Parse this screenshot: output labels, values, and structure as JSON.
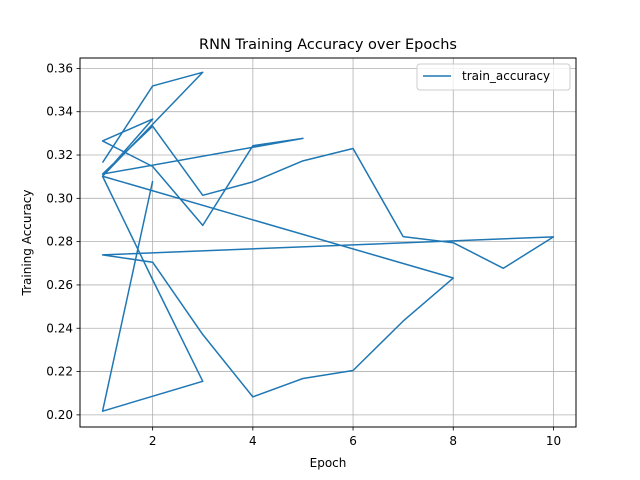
{
  "chart_data": {
    "type": "line",
    "title": "RNN Training Accuracy over Epochs",
    "xlabel": "Epoch",
    "ylabel": "Training Accuracy",
    "xlim": [
      0.55,
      10.45
    ],
    "ylim": [
      0.1944,
      0.3648
    ],
    "x_ticks": [
      2,
      4,
      6,
      8,
      10
    ],
    "y_ticks": [
      0.2,
      0.22,
      0.24,
      0.26,
      0.28,
      0.3,
      0.32,
      0.34,
      0.36
    ],
    "x_tick_labels": [
      "2",
      "4",
      "6",
      "8",
      "10"
    ],
    "y_tick_labels": [
      "0.20",
      "0.22",
      "0.24",
      "0.26",
      "0.28",
      "0.30",
      "0.32",
      "0.34",
      "0.36"
    ],
    "grid": true,
    "legend_position": "upper right",
    "series": [
      {
        "name": "train_accuracy",
        "color": "#1f77b4",
        "x": [
          1,
          2,
          3,
          1,
          2,
          1,
          2,
          3,
          4,
          5,
          1,
          2,
          3,
          4,
          5,
          6,
          7,
          8,
          9,
          10,
          1,
          2,
          3,
          4,
          5,
          6,
          7,
          8,
          1,
          2,
          3,
          1,
          2
        ],
        "y": [
          0.3165,
          0.3519,
          0.3582,
          0.3102,
          0.3366,
          0.3265,
          0.3147,
          0.2875,
          0.3243,
          0.3277,
          0.3112,
          0.3333,
          0.3014,
          0.3076,
          0.3173,
          0.323,
          0.2823,
          0.2795,
          0.2677,
          0.2822,
          0.2739,
          0.2705,
          0.2371,
          0.2083,
          0.2168,
          0.2205,
          0.2433,
          0.2632,
          0.3102,
          0.2624,
          0.2155,
          0.2017,
          0.308
        ]
      }
    ]
  }
}
